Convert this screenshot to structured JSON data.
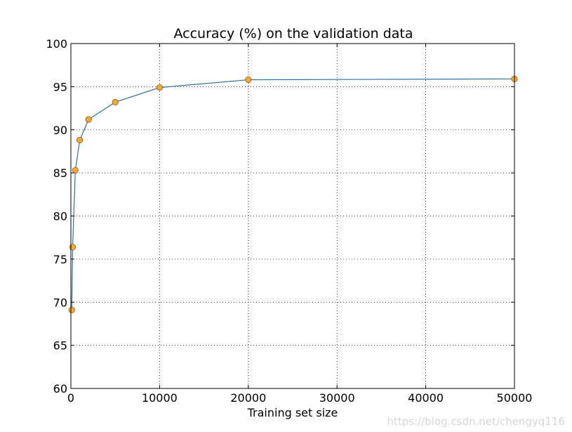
{
  "chart_data": {
    "type": "line",
    "title": "Accuracy (%) on the validation data",
    "xlabel": "Training set size",
    "ylabel": "",
    "xlim": [
      0,
      50000
    ],
    "ylim": [
      60,
      100
    ],
    "xticks": [
      0,
      10000,
      20000,
      30000,
      40000,
      50000
    ],
    "yticks": [
      60,
      65,
      70,
      75,
      80,
      85,
      90,
      95,
      100
    ],
    "grid": true,
    "legend": "none",
    "series": [
      {
        "x": [
          100,
          200,
          500,
          1000,
          2000,
          5000,
          10000,
          20000,
          50000
        ],
        "y": [
          69.1,
          76.4,
          85.3,
          88.8,
          91.2,
          93.2,
          94.9,
          95.8,
          95.9
        ],
        "line_color": "#2c6fa3",
        "marker_color": "#f5a833",
        "marker_edge": "#5a3a00"
      }
    ]
  },
  "watermark": "https://blog.csdn.net/chengyq116"
}
